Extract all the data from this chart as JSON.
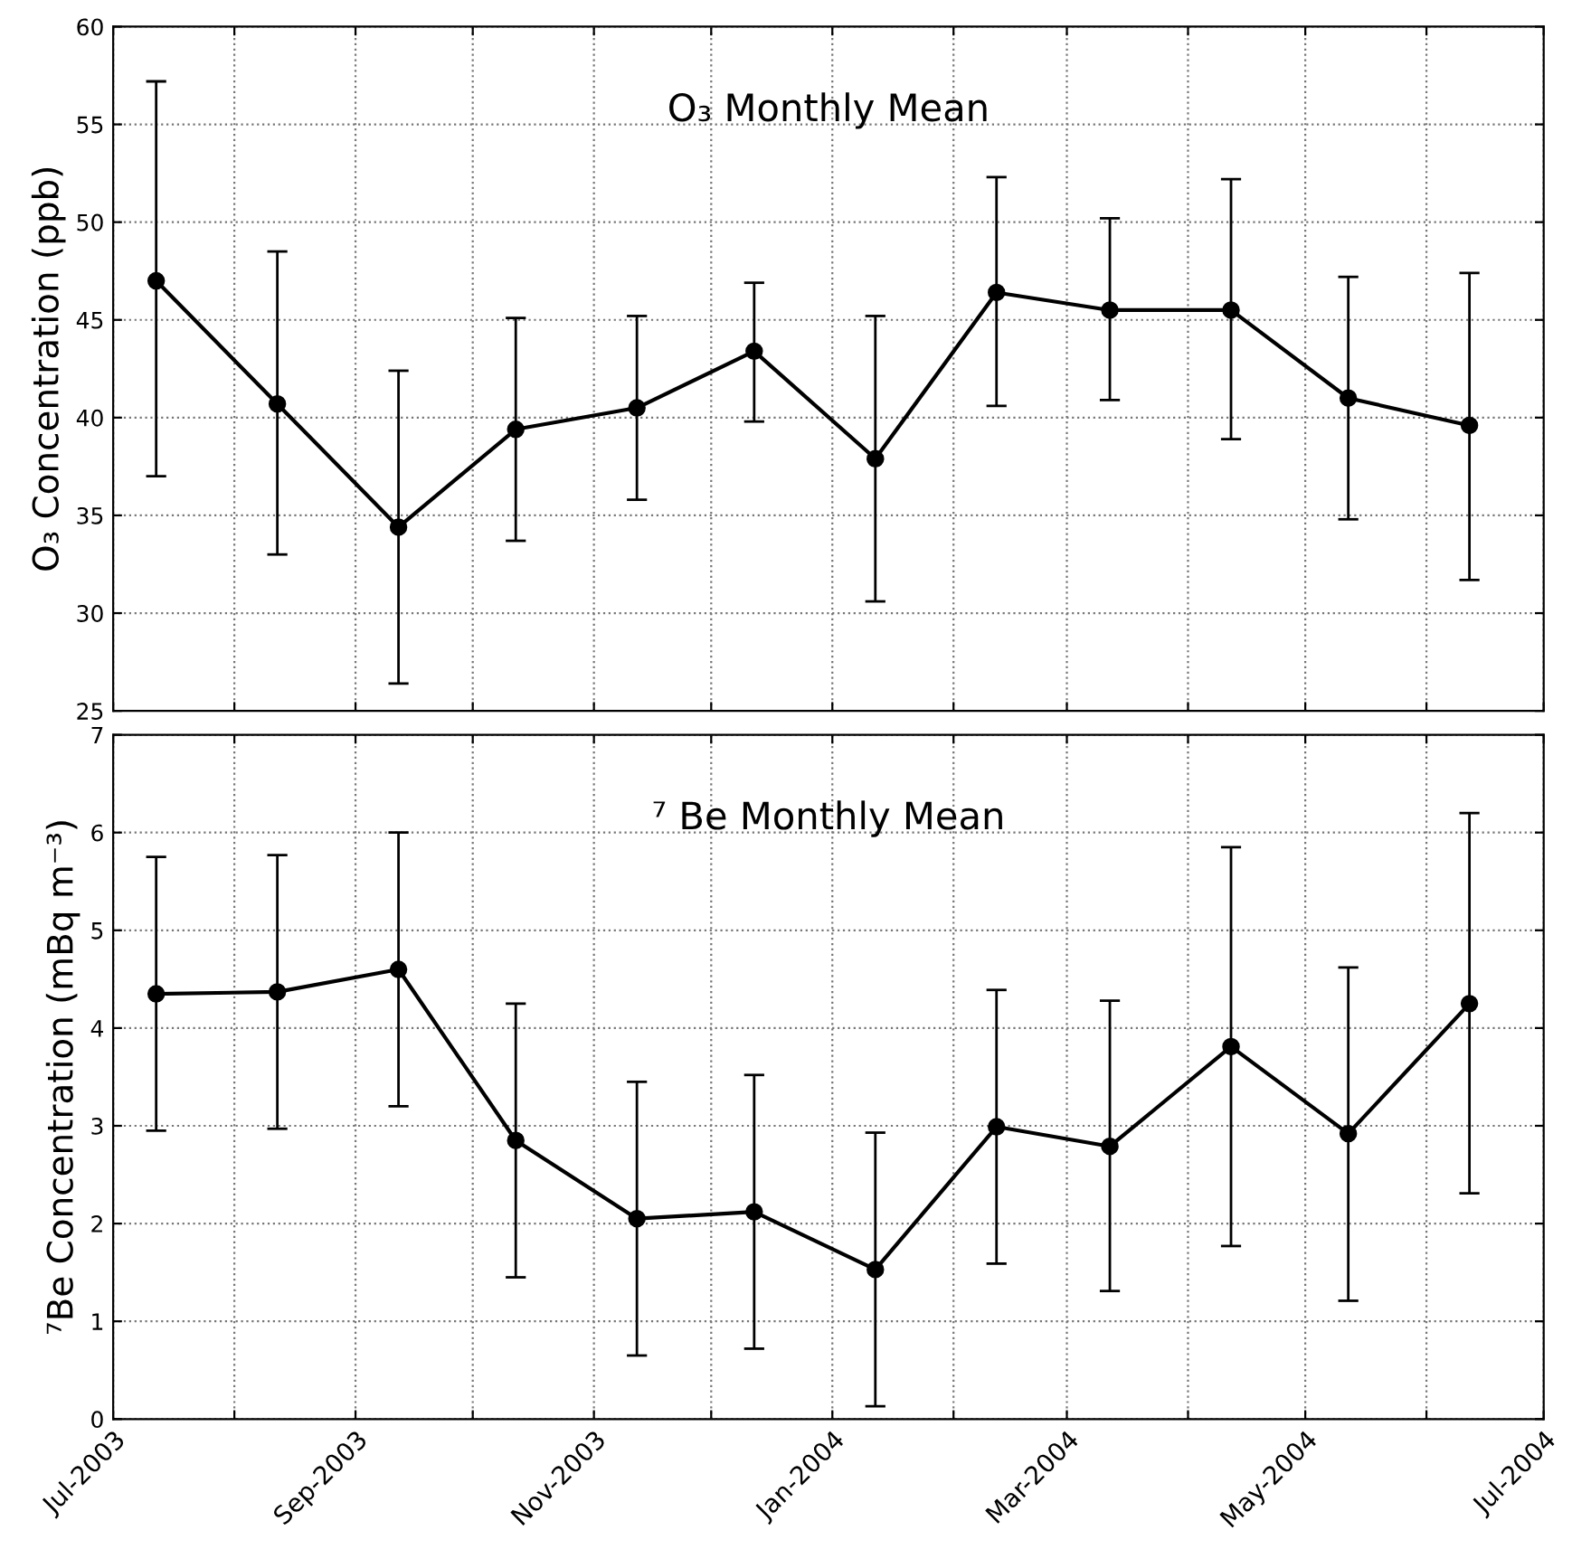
{
  "chart_data": [
    {
      "type": "line",
      "title": "O₃ Monthly Mean",
      "ylabel": "O₃ Concentration (ppb)",
      "x": [
        "2003-07-12",
        "2003-08-12",
        "2003-09-12",
        "2003-10-12",
        "2003-11-12",
        "2003-12-12",
        "2004-01-12",
        "2004-02-12",
        "2004-03-12",
        "2004-04-12",
        "2004-05-12",
        "2004-06-12"
      ],
      "series": [
        {
          "color": "#000000",
          "values": [
            47.0,
            40.7,
            34.4,
            39.4,
            40.5,
            43.4,
            37.9,
            46.4,
            45.5,
            45.5,
            41.0,
            39.6
          ],
          "errors": [
            [
              37.0,
              57.2
            ],
            [
              33.0,
              48.5
            ],
            [
              26.4,
              42.4
            ],
            [
              33.7,
              45.1
            ],
            [
              35.8,
              45.2
            ],
            [
              39.8,
              46.9
            ],
            [
              30.6,
              45.2
            ],
            [
              40.6,
              52.3
            ],
            [
              40.9,
              50.2
            ],
            [
              38.9,
              52.2
            ],
            [
              34.8,
              47.2
            ],
            [
              31.7,
              47.4
            ]
          ]
        }
      ],
      "marker": "circle",
      "line_style": "solid",
      "grid": true,
      "tick_labels": "y",
      "xlim": [
        "2003-07",
        "2004-07"
      ],
      "xticks": [
        {
          "value": "2003-07",
          "label": null
        },
        {
          "value": "2003-08",
          "label": null
        },
        {
          "value": "2003-09",
          "label": null
        },
        {
          "value": "2003-10",
          "label": null
        },
        {
          "value": "2003-11",
          "label": null
        },
        {
          "value": "2003-12",
          "label": null
        },
        {
          "value": "2004-01",
          "label": null
        },
        {
          "value": "2004-02",
          "label": null
        },
        {
          "value": "2004-03",
          "label": null
        },
        {
          "value": "2004-04",
          "label": null
        },
        {
          "value": "2004-05",
          "label": null
        },
        {
          "value": "2004-06",
          "label": null
        },
        {
          "value": "2004-07",
          "label": null
        }
      ],
      "ylim": [
        25,
        60
      ],
      "yticks": [
        25,
        30,
        35,
        40,
        45,
        50,
        55,
        60
      ]
    },
    {
      "type": "line",
      "title": "⁷ Be Monthly Mean",
      "ylabel": "⁷Be Concentration (mBq m⁻³)",
      "x": [
        "2003-07-12",
        "2003-08-12",
        "2003-09-12",
        "2003-10-12",
        "2003-11-12",
        "2003-12-12",
        "2004-01-12",
        "2004-02-12",
        "2004-03-12",
        "2004-04-12",
        "2004-05-12",
        "2004-06-12"
      ],
      "series": [
        {
          "color": "#000000",
          "values": [
            4.35,
            4.37,
            4.6,
            2.85,
            2.05,
            2.12,
            1.53,
            2.99,
            2.79,
            3.81,
            2.92,
            4.25
          ],
          "errors": [
            [
              2.95,
              5.75
            ],
            [
              2.97,
              5.77
            ],
            [
              3.2,
              6.0
            ],
            [
              1.45,
              4.25
            ],
            [
              0.65,
              3.45
            ],
            [
              0.72,
              3.52
            ],
            [
              0.13,
              2.93
            ],
            [
              1.59,
              4.39
            ],
            [
              1.31,
              4.28
            ],
            [
              1.77,
              5.85
            ],
            [
              1.21,
              4.62
            ],
            [
              2.31,
              6.2
            ]
          ]
        }
      ],
      "marker": "circle",
      "line_style": "solid",
      "grid": true,
      "xlim": [
        "2003-07",
        "2004-07"
      ],
      "xticks": [
        {
          "value": "2003-07",
          "label": "Jul-2003"
        },
        {
          "value": "2003-08",
          "label": null
        },
        {
          "value": "2003-09",
          "label": "Sep-2003"
        },
        {
          "value": "2003-10",
          "label": null
        },
        {
          "value": "2003-11",
          "label": "Nov-2003"
        },
        {
          "value": "2003-12",
          "label": null
        },
        {
          "value": "2004-01",
          "label": "Jan-2004"
        },
        {
          "value": "2004-02",
          "label": null
        },
        {
          "value": "2004-03",
          "label": "Mar-2004"
        },
        {
          "value": "2004-04",
          "label": null
        },
        {
          "value": "2004-05",
          "label": "May-2004"
        },
        {
          "value": "2004-06",
          "label": null
        },
        {
          "value": "2004-07",
          "label": "Jul-2004"
        }
      ],
      "ylim": [
        0,
        7
      ],
      "yticks": [
        0,
        1,
        2,
        3,
        4,
        5,
        6,
        7
      ]
    }
  ]
}
